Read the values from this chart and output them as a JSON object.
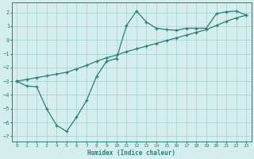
{
  "xlabel": "Humidex (Indice chaleur)",
  "bg_color": "#d4eeee",
  "grid_color": "#aad4d4",
  "line_color": "#2d7a7a",
  "xlim": [
    -0.5,
    23.5
  ],
  "ylim": [
    -7.4,
    2.7
  ],
  "yticks": [
    -7,
    -6,
    -5,
    -4,
    -3,
    -2,
    -1,
    0,
    1,
    2
  ],
  "xticks": [
    0,
    1,
    2,
    3,
    4,
    5,
    6,
    7,
    8,
    9,
    10,
    11,
    12,
    13,
    14,
    15,
    16,
    17,
    18,
    19,
    20,
    21,
    22,
    23
  ],
  "line1_x": [
    0,
    1,
    2,
    3,
    4,
    5,
    6,
    7,
    8,
    9,
    10,
    11,
    12,
    13,
    14,
    15,
    16,
    17,
    18,
    19,
    20,
    21,
    22,
    23
  ],
  "line1_y": [
    -3.0,
    -3.35,
    -3.4,
    -5.0,
    -6.2,
    -6.65,
    -5.6,
    -4.4,
    -2.65,
    -1.55,
    -1.35,
    1.05,
    2.1,
    1.3,
    0.85,
    0.75,
    0.7,
    0.85,
    0.85,
    0.85,
    1.9,
    2.05,
    2.1,
    1.8
  ],
  "line2_x": [
    0,
    1,
    2,
    3,
    4,
    5,
    6,
    7,
    8,
    9,
    10,
    11,
    12,
    13,
    14,
    15,
    16,
    17,
    18,
    19,
    20,
    21,
    22,
    23
  ],
  "line2_y": [
    -3.0,
    -2.87,
    -2.74,
    -2.61,
    -2.48,
    -2.35,
    -2.1,
    -1.85,
    -1.55,
    -1.3,
    -1.1,
    -0.85,
    -0.65,
    -0.45,
    -0.25,
    -0.05,
    0.15,
    0.35,
    0.55,
    0.75,
    1.05,
    1.35,
    1.6,
    1.8
  ]
}
